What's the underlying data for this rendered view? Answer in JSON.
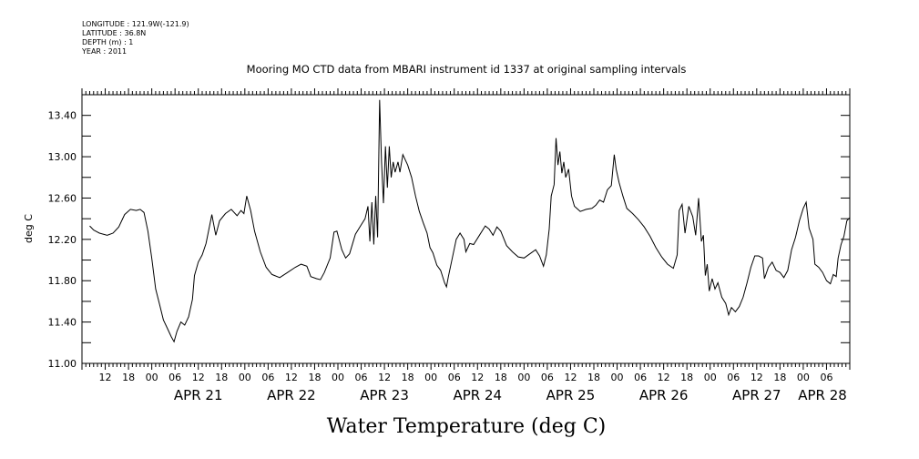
{
  "meta": {
    "longitude": "LONGITUDE : 121.9W(-121.9)",
    "latitude": "LATITUDE : 36.8N",
    "depth": "DEPTH (m) : 1",
    "year": "YEAR : 2011"
  },
  "chart_data": {
    "type": "line",
    "title": "Mooring MO CTD data from MBARI instrument id 1337 at original sampling intervals",
    "xlabel": "Water Temperature (deg C)",
    "ylabel": "deg C",
    "ylim": [
      11.0,
      13.6
    ],
    "yticks": [
      "11.00",
      "11.40",
      "11.80",
      "12.20",
      "12.60",
      "13.00",
      "13.40"
    ],
    "xlim": [
      "2011-04-20T06:00",
      "2011-04-28T12:00"
    ],
    "hour_labels": [
      "12",
      "18",
      "00",
      "06",
      "12",
      "18",
      "00",
      "06",
      "12",
      "18",
      "00",
      "06",
      "12",
      "18",
      "00",
      "06",
      "12",
      "18",
      "00",
      "06",
      "12",
      "18",
      "00",
      "06",
      "12",
      "18",
      "00",
      "06",
      "12",
      "18",
      "00",
      "06"
    ],
    "date_labels": [
      "APR 21",
      "APR 22",
      "APR 23",
      "APR 24",
      "APR 25",
      "APR 26",
      "APR 27",
      "APR 28"
    ],
    "series": [
      {
        "values": [
          [
            "2011-04-20T08:00",
            12.33
          ],
          [
            "2011-04-20T09:00",
            12.29
          ],
          [
            "2011-04-20T10:30",
            12.26
          ],
          [
            "2011-04-20T12:30",
            12.24
          ],
          [
            "2011-04-20T14:00",
            12.26
          ],
          [
            "2011-04-20T15:30",
            12.32
          ],
          [
            "2011-04-20T17:00",
            12.44
          ],
          [
            "2011-04-20T18:30",
            12.49
          ],
          [
            "2011-04-20T20:00",
            12.48
          ],
          [
            "2011-04-20T21:00",
            12.49
          ],
          [
            "2011-04-20T22:00",
            12.46
          ],
          [
            "2011-04-20T23:00",
            12.28
          ],
          [
            "2011-04-21T00:00",
            12.02
          ],
          [
            "2011-04-21T01:00",
            11.72
          ],
          [
            "2011-04-21T02:00",
            11.57
          ],
          [
            "2011-04-21T03:00",
            11.42
          ],
          [
            "2011-04-21T04:00",
            11.34
          ],
          [
            "2011-04-21T05:00",
            11.26
          ],
          [
            "2011-04-21T05:45",
            11.21
          ],
          [
            "2011-04-21T06:30",
            11.31
          ],
          [
            "2011-04-21T07:30",
            11.4
          ],
          [
            "2011-04-21T08:30",
            11.37
          ],
          [
            "2011-04-21T09:30",
            11.45
          ],
          [
            "2011-04-21T10:30",
            11.62
          ],
          [
            "2011-04-21T11:00",
            11.85
          ],
          [
            "2011-04-21T12:00",
            11.98
          ],
          [
            "2011-04-21T13:00",
            12.05
          ],
          [
            "2011-04-21T14:00",
            12.16
          ],
          [
            "2011-04-21T15:30",
            12.44
          ],
          [
            "2011-04-21T16:30",
            12.24
          ],
          [
            "2011-04-21T17:30",
            12.38
          ],
          [
            "2011-04-21T19:00",
            12.45
          ],
          [
            "2011-04-21T20:30",
            12.49
          ],
          [
            "2011-04-21T22:00",
            12.43
          ],
          [
            "2011-04-21T23:00",
            12.48
          ],
          [
            "2011-04-21T23:45",
            12.45
          ],
          [
            "2011-04-22T00:30",
            12.62
          ],
          [
            "2011-04-22T01:30",
            12.48
          ],
          [
            "2011-04-22T02:30",
            12.28
          ],
          [
            "2011-04-22T04:00",
            12.08
          ],
          [
            "2011-04-22T05:30",
            11.93
          ],
          [
            "2011-04-22T07:00",
            11.86
          ],
          [
            "2011-04-22T09:00",
            11.83
          ],
          [
            "2011-04-22T11:00",
            11.88
          ],
          [
            "2011-04-22T13:00",
            11.93
          ],
          [
            "2011-04-22T14:30",
            11.96
          ],
          [
            "2011-04-22T16:00",
            11.94
          ],
          [
            "2011-04-22T17:00",
            11.84
          ],
          [
            "2011-04-22T18:30",
            11.82
          ],
          [
            "2011-04-22T19:30",
            11.81
          ],
          [
            "2011-04-22T20:30",
            11.88
          ],
          [
            "2011-04-22T22:00",
            12.02
          ],
          [
            "2011-04-22T23:00",
            12.27
          ],
          [
            "2011-04-22T23:45",
            12.28
          ],
          [
            "2011-04-23T01:00",
            12.1
          ],
          [
            "2011-04-23T02:00",
            12.02
          ],
          [
            "2011-04-23T03:00",
            12.06
          ],
          [
            "2011-04-23T04:30",
            12.25
          ],
          [
            "2011-04-23T06:00",
            12.34
          ],
          [
            "2011-04-23T07:00",
            12.4
          ],
          [
            "2011-04-23T07:45",
            12.52
          ],
          [
            "2011-04-23T08:15",
            12.18
          ],
          [
            "2011-04-23T08:45",
            12.56
          ],
          [
            "2011-04-23T09:15",
            12.15
          ],
          [
            "2011-04-23T09:45",
            12.62
          ],
          [
            "2011-04-23T10:15",
            12.22
          ],
          [
            "2011-04-23T10:45",
            13.55
          ],
          [
            "2011-04-23T11:15",
            12.95
          ],
          [
            "2011-04-23T11:45",
            12.55
          ],
          [
            "2011-04-23T12:15",
            13.1
          ],
          [
            "2011-04-23T12:45",
            12.7
          ],
          [
            "2011-04-23T13:15",
            13.1
          ],
          [
            "2011-04-23T13:45",
            12.8
          ],
          [
            "2011-04-23T14:15",
            12.95
          ],
          [
            "2011-04-23T14:45",
            12.85
          ],
          [
            "2011-04-23T15:30",
            12.95
          ],
          [
            "2011-04-23T16:00",
            12.85
          ],
          [
            "2011-04-23T16:45",
            13.02
          ],
          [
            "2011-04-23T18:00",
            12.92
          ],
          [
            "2011-04-23T19:00",
            12.8
          ],
          [
            "2011-04-23T20:00",
            12.62
          ],
          [
            "2011-04-23T21:00",
            12.47
          ],
          [
            "2011-04-23T22:00",
            12.36
          ],
          [
            "2011-04-23T23:00",
            12.26
          ],
          [
            "2011-04-23T23:45",
            12.12
          ],
          [
            "2011-04-24T00:30",
            12.07
          ],
          [
            "2011-04-24T01:30",
            11.95
          ],
          [
            "2011-04-24T02:30",
            11.9
          ],
          [
            "2011-04-24T03:30",
            11.78
          ],
          [
            "2011-04-24T04:00",
            11.74
          ],
          [
            "2011-04-24T04:30",
            11.84
          ],
          [
            "2011-04-24T05:30",
            12.02
          ],
          [
            "2011-04-24T06:30",
            12.2
          ],
          [
            "2011-04-24T07:30",
            12.26
          ],
          [
            "2011-04-24T08:30",
            12.2
          ],
          [
            "2011-04-24T09:00",
            12.08
          ],
          [
            "2011-04-24T10:00",
            12.16
          ],
          [
            "2011-04-24T11:00",
            12.15
          ],
          [
            "2011-04-24T12:30",
            12.24
          ],
          [
            "2011-04-24T14:00",
            12.33
          ],
          [
            "2011-04-24T15:00",
            12.3
          ],
          [
            "2011-04-24T16:00",
            12.24
          ],
          [
            "2011-04-24T17:00",
            12.32
          ],
          [
            "2011-04-24T18:00",
            12.28
          ],
          [
            "2011-04-24T19:30",
            12.14
          ],
          [
            "2011-04-24T21:00",
            12.08
          ],
          [
            "2011-04-24T22:30",
            12.03
          ],
          [
            "2011-04-25T00:00",
            12.02
          ],
          [
            "2011-04-25T01:30",
            12.06
          ],
          [
            "2011-04-25T03:00",
            12.1
          ],
          [
            "2011-04-25T04:00",
            12.04
          ],
          [
            "2011-04-25T05:00",
            11.94
          ],
          [
            "2011-04-25T05:45",
            12.05
          ],
          [
            "2011-04-25T06:30",
            12.3
          ],
          [
            "2011-04-25T07:00",
            12.62
          ],
          [
            "2011-04-25T07:45",
            12.73
          ],
          [
            "2011-04-25T08:15",
            13.18
          ],
          [
            "2011-04-25T08:45",
            12.92
          ],
          [
            "2011-04-25T09:15",
            13.05
          ],
          [
            "2011-04-25T09:45",
            12.84
          ],
          [
            "2011-04-25T10:15",
            12.95
          ],
          [
            "2011-04-25T10:45",
            12.8
          ],
          [
            "2011-04-25T11:30",
            12.88
          ],
          [
            "2011-04-25T12:15",
            12.62
          ],
          [
            "2011-04-25T13:00",
            12.52
          ],
          [
            "2011-04-25T14:30",
            12.47
          ],
          [
            "2011-04-25T16:00",
            12.49
          ],
          [
            "2011-04-25T17:30",
            12.5
          ],
          [
            "2011-04-25T18:30",
            12.53
          ],
          [
            "2011-04-25T19:30",
            12.58
          ],
          [
            "2011-04-25T20:30",
            12.56
          ],
          [
            "2011-04-25T21:30",
            12.68
          ],
          [
            "2011-04-25T22:30",
            12.72
          ],
          [
            "2011-04-25T23:15",
            13.02
          ],
          [
            "2011-04-25T23:45",
            12.88
          ],
          [
            "2011-04-26T00:30",
            12.75
          ],
          [
            "2011-04-26T01:30",
            12.62
          ],
          [
            "2011-04-26T02:30",
            12.5
          ],
          [
            "2011-04-26T04:00",
            12.45
          ],
          [
            "2011-04-26T05:30",
            12.39
          ],
          [
            "2011-04-26T07:00",
            12.32
          ],
          [
            "2011-04-26T08:30",
            12.23
          ],
          [
            "2011-04-26T10:00",
            12.12
          ],
          [
            "2011-04-26T11:30",
            12.03
          ],
          [
            "2011-04-26T13:00",
            11.96
          ],
          [
            "2011-04-26T14:30",
            11.92
          ],
          [
            "2011-04-26T15:30",
            12.05
          ],
          [
            "2011-04-26T16:00",
            12.48
          ],
          [
            "2011-04-26T16:45",
            12.54
          ],
          [
            "2011-04-26T17:30",
            12.26
          ],
          [
            "2011-04-26T18:30",
            12.52
          ],
          [
            "2011-04-26T19:30",
            12.42
          ],
          [
            "2011-04-26T20:15",
            12.24
          ],
          [
            "2011-04-26T21:00",
            12.6
          ],
          [
            "2011-04-26T21:45",
            12.18
          ],
          [
            "2011-04-26T22:15",
            12.24
          ],
          [
            "2011-04-26T22:45",
            11.85
          ],
          [
            "2011-04-26T23:15",
            11.96
          ],
          [
            "2011-04-26T23:45",
            11.7
          ],
          [
            "2011-04-27T00:30",
            11.82
          ],
          [
            "2011-04-27T01:15",
            11.72
          ],
          [
            "2011-04-27T02:00",
            11.78
          ],
          [
            "2011-04-27T03:00",
            11.64
          ],
          [
            "2011-04-27T04:00",
            11.58
          ],
          [
            "2011-04-27T04:45",
            11.47
          ],
          [
            "2011-04-27T05:30",
            11.54
          ],
          [
            "2011-04-27T06:30",
            11.5
          ],
          [
            "2011-04-27T07:30",
            11.55
          ],
          [
            "2011-04-27T08:30",
            11.64
          ],
          [
            "2011-04-27T09:30",
            11.78
          ],
          [
            "2011-04-27T10:30",
            11.93
          ],
          [
            "2011-04-27T11:30",
            12.04
          ],
          [
            "2011-04-27T12:30",
            12.04
          ],
          [
            "2011-04-27T13:30",
            12.02
          ],
          [
            "2011-04-27T14:00",
            11.82
          ],
          [
            "2011-04-27T15:00",
            11.93
          ],
          [
            "2011-04-27T16:00",
            11.98
          ],
          [
            "2011-04-27T17:00",
            11.9
          ],
          [
            "2011-04-27T18:00",
            11.88
          ],
          [
            "2011-04-27T19:00",
            11.83
          ],
          [
            "2011-04-27T20:00",
            11.9
          ],
          [
            "2011-04-27T21:00",
            12.1
          ],
          [
            "2011-04-27T22:00",
            12.22
          ],
          [
            "2011-04-27T23:00",
            12.38
          ],
          [
            "2011-04-28T00:00",
            12.5
          ],
          [
            "2011-04-28T00:45",
            12.56
          ],
          [
            "2011-04-28T01:30",
            12.31
          ],
          [
            "2011-04-28T02:30",
            12.2
          ],
          [
            "2011-04-28T03:00",
            11.96
          ],
          [
            "2011-04-28T04:00",
            11.93
          ],
          [
            "2011-04-28T05:00",
            11.88
          ],
          [
            "2011-04-28T06:00",
            11.8
          ],
          [
            "2011-04-28T07:00",
            11.77
          ],
          [
            "2011-04-28T07:45",
            11.86
          ],
          [
            "2011-04-28T08:30",
            11.84
          ],
          [
            "2011-04-28T09:00",
            12.02
          ],
          [
            "2011-04-28T09:45",
            12.15
          ],
          [
            "2011-04-28T10:30",
            12.23
          ],
          [
            "2011-04-28T11:15",
            12.38
          ],
          [
            "2011-04-28T12:00",
            12.41
          ]
        ]
      }
    ]
  }
}
